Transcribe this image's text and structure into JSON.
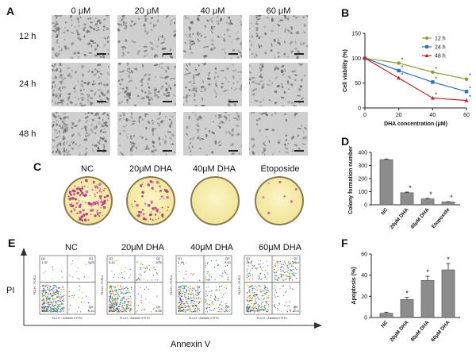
{
  "panels": {
    "A": {
      "letter": "A",
      "columns": [
        "0 μM",
        "20 μM",
        "40 μM",
        "60 μM"
      ],
      "rows": [
        "12 h",
        "24 h",
        "48 h"
      ],
      "densities": [
        [
          0.55,
          0.25,
          0.35,
          0.3
        ],
        [
          0.7,
          0.45,
          0.35,
          0.25
        ],
        [
          0.8,
          0.35,
          0.2,
          0.12
        ]
      ]
    },
    "C": {
      "letter": "C",
      "dishes": [
        {
          "label": "NC",
          "colony_level": 0.9
        },
        {
          "label": "20μM DHA",
          "colony_level": 0.45
        },
        {
          "label": "40μM DHA",
          "colony_level": 0.0
        },
        {
          "label": "Etoposide",
          "colony_level": 0.05
        }
      ]
    },
    "E": {
      "letter": "E",
      "columns": [
        "NC",
        "20μM DHA",
        "40μM DHA",
        "60μM DHA"
      ],
      "y_axis": "PI",
      "x_axis": "Annexin V",
      "plot_ylabel": "FL2-H :: PI-FL2",
      "plot_xlabel": "FL1-H :: Annexin V FITC",
      "quadrants": [
        {
          "q1_label": "Q1",
          "q1": "1.32",
          "q2_label": "Q2",
          "q2": "3.25",
          "q3_label": "Q3",
          "q3": "5.14",
          "q4_label": "Q4",
          "q4": "90.3"
        },
        {
          "q1_label": "Q1",
          "q1": "3.14",
          "q2_label": "Q2",
          "q2": "10.6",
          "q3_label": "Q3",
          "q3": "6.35",
          "q4_label": "Q4",
          "q4": "80.0"
        },
        {
          "q1_label": "Q1",
          "q1": "2.39",
          "q2_label": "Q2",
          "q2": "9.43",
          "q3_label": "Q3",
          "q3": "20.7",
          "q4_label": "Q4",
          "q4": "67.4"
        },
        {
          "q1_label": "Q1",
          "q1": "13.8",
          "q2_label": "Q2",
          "q2": "28.9",
          "q3_label": "Q3",
          "q3": "10.4",
          "q4_label": "Q4",
          "q4": "56.1"
        }
      ]
    }
  },
  "chart_data": [
    {
      "letter": "B",
      "type": "line",
      "ylabel": "Cell viability (%)",
      "xlabel": "DHA concentration (μM)",
      "x": [
        0,
        20,
        40,
        60
      ],
      "xlim": [
        0,
        60
      ],
      "xticks": [
        "0",
        "20",
        "40",
        "60"
      ],
      "ylim": [
        0,
        150
      ],
      "yticks": [
        "0",
        "50",
        "100",
        "150"
      ],
      "legend_position": "top-right",
      "series": [
        {
          "name": "12 h",
          "color": "#8f9a3a",
          "marker": "circle",
          "values": [
            100,
            90,
            72,
            58
          ]
        },
        {
          "name": "24 h",
          "color": "#2f6fb5",
          "marker": "square",
          "values": [
            100,
            75,
            52,
            33
          ]
        },
        {
          "name": "48 h",
          "color": "#b82828",
          "marker": "triangle",
          "values": [
            100,
            60,
            20,
            15
          ]
        }
      ],
      "significance": [
        {
          "x": 20,
          "y": 90,
          "text": "*"
        },
        {
          "x": 20,
          "y": 75,
          "text": "*"
        },
        {
          "x": 20,
          "y": 60,
          "text": "*"
        },
        {
          "x": 40,
          "y": 72,
          "text": "*"
        },
        {
          "x": 40,
          "y": 52,
          "text": "*"
        },
        {
          "x": 40,
          "y": 20,
          "text": "*"
        },
        {
          "x": 60,
          "y": 58,
          "text": "*"
        },
        {
          "x": 60,
          "y": 33,
          "text": "*"
        },
        {
          "x": 60,
          "y": 15,
          "text": "*"
        }
      ]
    },
    {
      "letter": "D",
      "type": "bar",
      "ylabel": "Colony formation numbers",
      "categories": [
        "NC",
        "20μM DHA",
        "40μM DHA",
        "Etoposide"
      ],
      "values": [
        345,
        92,
        45,
        22
      ],
      "errors": [
        5,
        5,
        4,
        2
      ],
      "ylim": [
        0,
        400
      ],
      "yticks": [
        "0",
        "100",
        "200",
        "300",
        "400"
      ],
      "significance": [
        "",
        "*",
        "*",
        "*"
      ]
    },
    {
      "letter": "F",
      "type": "bar",
      "ylabel": "Apoptosis (%)",
      "categories": [
        "NC",
        "20μM DHA",
        "40μM DHA",
        "60μM DHA"
      ],
      "values": [
        4,
        17,
        35,
        45
      ],
      "errors": [
        1,
        2,
        4,
        6
      ],
      "ylim": [
        0,
        60
      ],
      "yticks": [
        "0",
        "20",
        "40",
        "60"
      ],
      "significance": [
        "",
        "*",
        "*",
        "*"
      ]
    }
  ]
}
